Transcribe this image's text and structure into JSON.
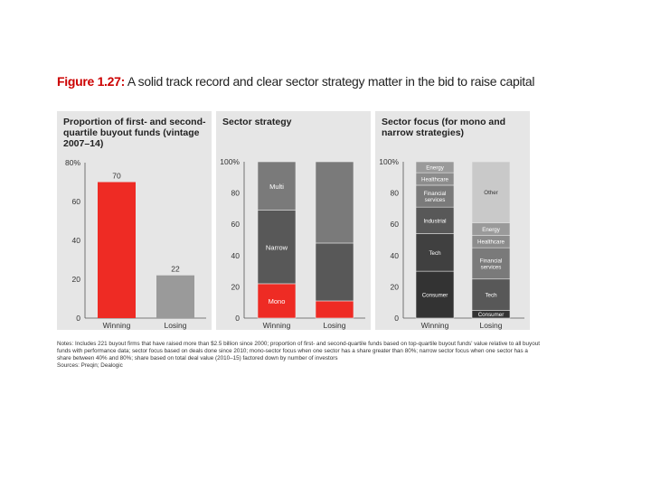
{
  "figure": {
    "number": "Figure 1.27:",
    "title": "A solid track record and clear sector strategy matter in the bid to raise capital"
  },
  "notes": {
    "text": "Notes: Includes 221 buyout firms that have raised more than $2.5 billion since 2000; proportion of first- and second-quartile funds based on top-quartile buyout funds' value relative to all buyout funds with performance data; sector focus based on deals done since 2010; mono-sector focus when one sector has a share greater than 80%; narrow sector focus when one sector has a share between 40% and 80%; share based on total deal value (2010–15) factored down by number of investors",
    "sources": "Sources: Preqin; Dealogic"
  },
  "colors": {
    "red": "#ee2b24",
    "panel_bg": "#e6e6e6",
    "dark": "#333333",
    "mid_dark": "#585858",
    "mid": "#7a7a7a",
    "light": "#9a9a9a",
    "lighter": "#c9c9c9"
  },
  "chart_data": [
    {
      "type": "bar",
      "title": "Proportion of first- and second-quartile buyout funds (vintage 2007–14)",
      "categories": [
        "Winning",
        "Losing"
      ],
      "values": [
        70,
        22
      ],
      "value_labels": [
        "70",
        "22"
      ],
      "ylim": [
        0,
        80
      ],
      "yticks": [
        0,
        20,
        40,
        60,
        80
      ],
      "ytick_labels": [
        "0",
        "20",
        "40",
        "60",
        "80%"
      ]
    },
    {
      "type": "bar",
      "stacked": true,
      "title": "Sector strategy",
      "categories": [
        "Winning",
        "Losing"
      ],
      "ylim": [
        0,
        100
      ],
      "yticks": [
        0,
        20,
        40,
        60,
        80,
        100
      ],
      "ytick_labels": [
        "0",
        "20",
        "40",
        "60",
        "80",
        "100%"
      ],
      "series": [
        {
          "name": "Mono",
          "values": [
            22,
            11
          ],
          "color": "#ee2b24"
        },
        {
          "name": "Narrow",
          "values": [
            47,
            37
          ],
          "color": "#585858"
        },
        {
          "name": "Multi",
          "values": [
            31,
            52
          ],
          "color": "#7a7a7a"
        }
      ],
      "labels_on": "Winning"
    },
    {
      "type": "bar",
      "stacked": true,
      "title": "Sector focus (for mono and narrow strategies)",
      "categories": [
        "Winning",
        "Losing"
      ],
      "ylim": [
        0,
        100
      ],
      "yticks": [
        0,
        20,
        40,
        60,
        80,
        100
      ],
      "ytick_labels": [
        "0",
        "20",
        "40",
        "60",
        "80",
        "100%"
      ],
      "stacks": [
        {
          "category": "Winning",
          "segments": [
            {
              "name": "Consumer",
              "value": 30,
              "color": "#333333"
            },
            {
              "name": "Tech",
              "value": 24,
              "color": "#404040"
            },
            {
              "name": "Industrial",
              "value": 17,
              "color": "#585858"
            },
            {
              "name": "Financial services",
              "value": 14,
              "color": "#7a7a7a"
            },
            {
              "name": "Healthcare",
              "value": 8,
              "color": "#8c8c8c"
            },
            {
              "name": "Energy",
              "value": 7,
              "color": "#9a9a9a"
            }
          ]
        },
        {
          "category": "Losing",
          "segments": [
            {
              "name": "Consumer",
              "value": 5,
              "color": "#333333"
            },
            {
              "name": "Tech",
              "value": 20,
              "color": "#585858"
            },
            {
              "name": "Financial services",
              "value": 20,
              "color": "#7a7a7a"
            },
            {
              "name": "Healthcare",
              "value": 8,
              "color": "#8c8c8c"
            },
            {
              "name": "Energy",
              "value": 8,
              "color": "#9a9a9a"
            },
            {
              "name": "Other",
              "value": 39,
              "color": "#c9c9c9"
            }
          ]
        }
      ]
    }
  ]
}
